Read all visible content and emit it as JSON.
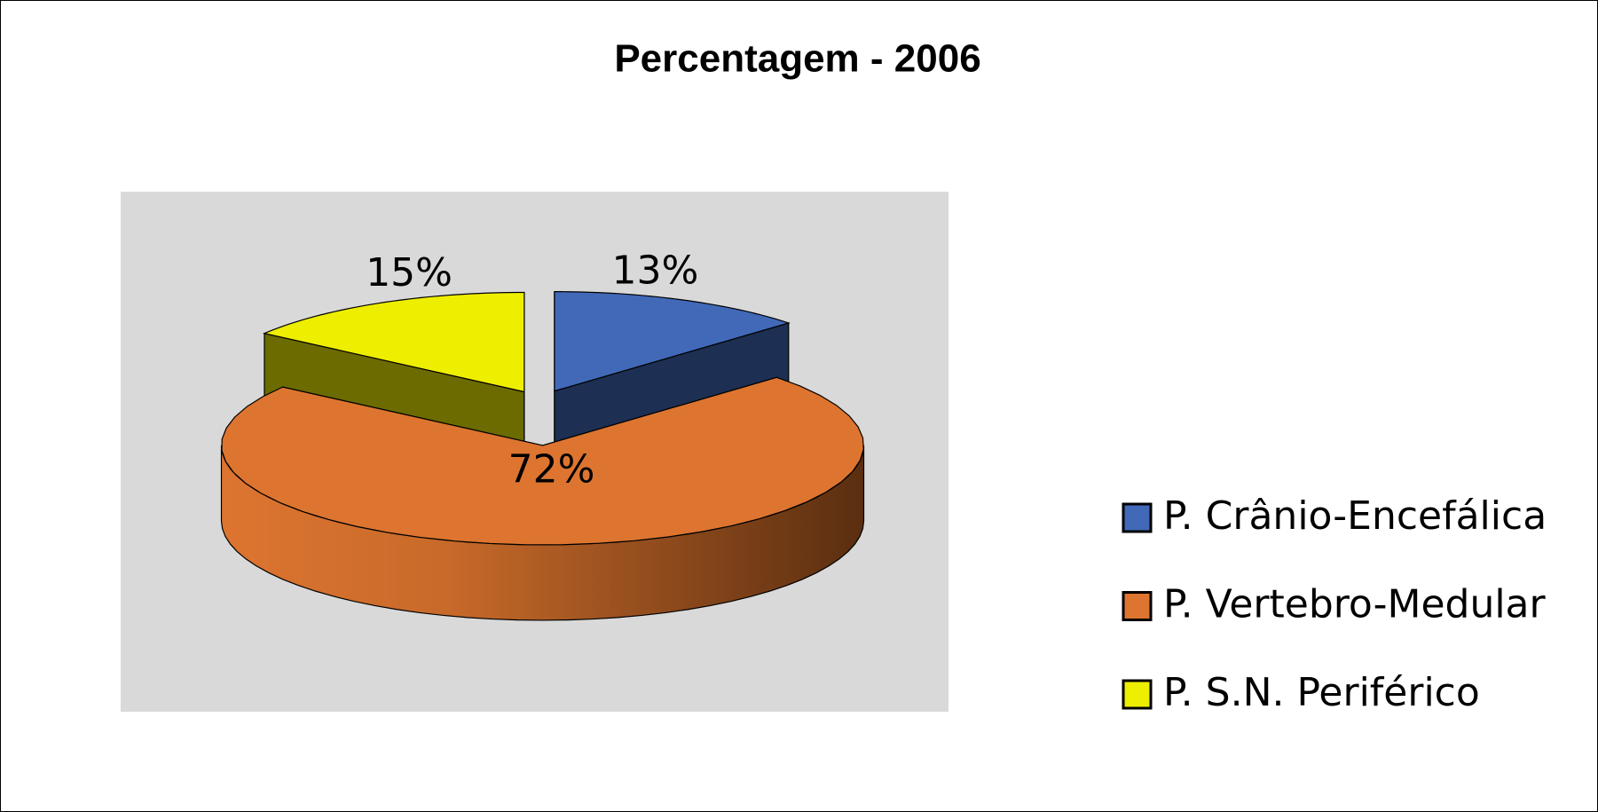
{
  "chart_data": {
    "type": "pie3d",
    "title": "Percentagem - 2006",
    "categories": [
      "P. Crânio-Encefálica",
      "P. Vertebro-Medular",
      "P. S.N. Periférico"
    ],
    "values": [
      13,
      72,
      15
    ],
    "value_labels": [
      "13%",
      "72%",
      "15%"
    ],
    "colors": [
      "#4169b8",
      "#dd7530",
      "#eeee00"
    ]
  }
}
